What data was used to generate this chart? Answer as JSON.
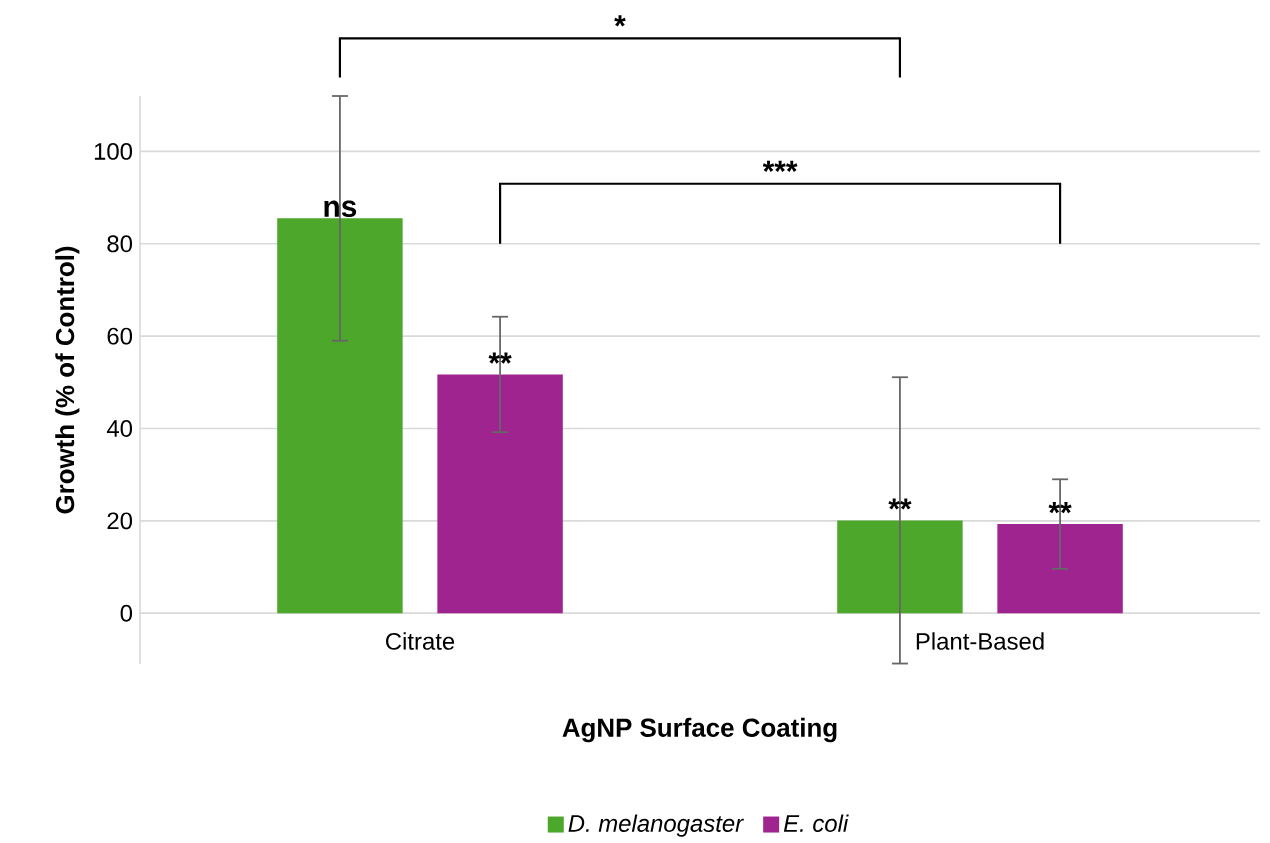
{
  "chart_data": {
    "type": "bar",
    "xlabel": "AgNP Surface Coating",
    "ylabel": "Growth (% of Control)",
    "categories": [
      "Citrate",
      "Plant-Based"
    ],
    "series": [
      {
        "name": "D. melanogaster",
        "color": "#4ca72a",
        "values": [
          85.5,
          20.1
        ],
        "errors": [
          26.5,
          31
        ]
      },
      {
        "name": "E. coli",
        "color": "#a02490",
        "values": [
          51.7,
          19.3
        ],
        "errors": [
          12.5,
          9.7
        ]
      }
    ],
    "ylim": [
      -11,
      112
    ],
    "yticks": [
      0,
      20,
      40,
      60,
      80,
      100
    ],
    "grid": "y",
    "legend": "bottom",
    "annotations": [
      "*",
      "***",
      "ns",
      "**",
      "**",
      "**"
    ]
  }
}
